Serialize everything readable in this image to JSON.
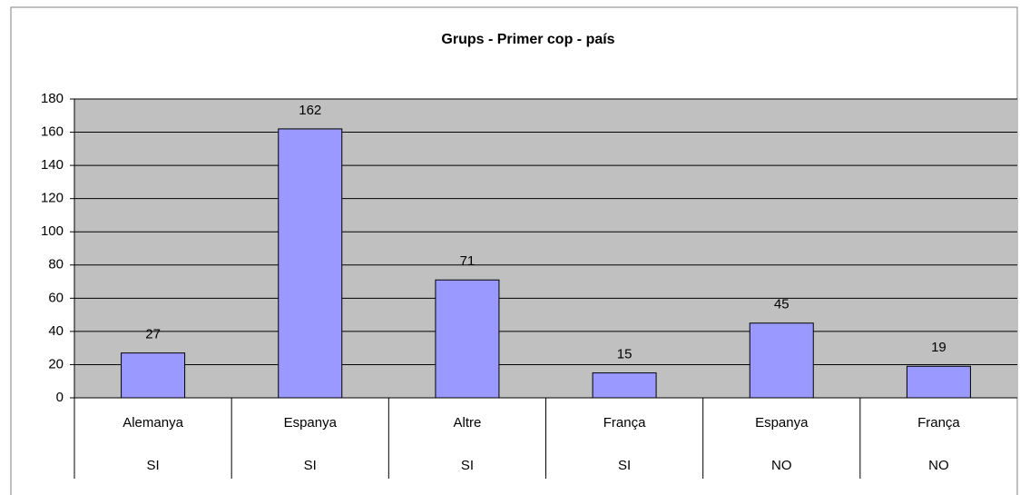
{
  "chart_data": {
    "type": "bar",
    "title": "Grups - Primer cop - país",
    "categories": [
      "Alemanya",
      "Espanya",
      "Altre",
      "França",
      "Espanya",
      "França"
    ],
    "groups": [
      "SI",
      "SI",
      "SI",
      "SI",
      "NO",
      "NO"
    ],
    "values": [
      27,
      162,
      71,
      15,
      45,
      19
    ],
    "color": "#9999ff",
    "ylim": [
      0,
      180
    ],
    "yticks": [
      0,
      20,
      40,
      60,
      80,
      100,
      120,
      140,
      160,
      180
    ],
    "grid": true
  }
}
